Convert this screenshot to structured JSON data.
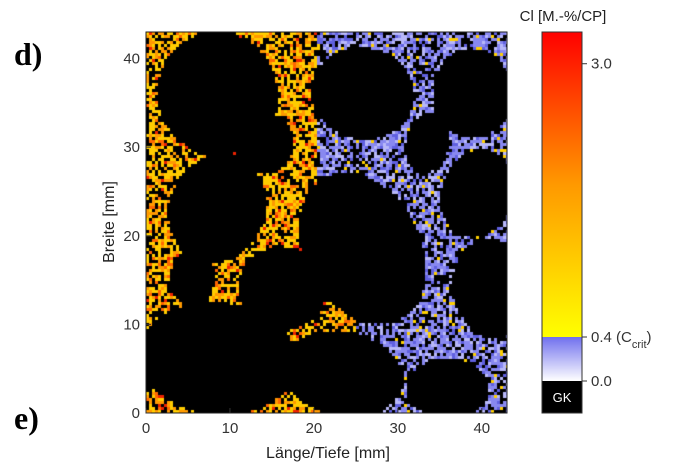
{
  "panel_labels": [
    "d)",
    "e)"
  ],
  "chart_data": {
    "type": "heatmap",
    "title": "",
    "xlabel": "Länge/Tiefe [mm]",
    "ylabel": "Breite [mm]",
    "xlim": [
      0,
      43
    ],
    "ylim": [
      0,
      43
    ],
    "xticks": [
      0,
      10,
      20,
      30,
      40
    ],
    "yticks": [
      0,
      10,
      20,
      30,
      40
    ],
    "grid": false,
    "colorbar": {
      "title": "Cl [M.-%/CP]",
      "range": [
        0,
        3.3
      ],
      "ticks": [
        {
          "value": 3.0,
          "label": "3.0"
        },
        {
          "value": 0.4,
          "label": "0.4 (C",
          "sub": "crit",
          "suffix": ")"
        },
        {
          "value": 0.0,
          "label": "0.0"
        }
      ],
      "bottom_label": "GK",
      "colors": {
        "aggregate": "#000000",
        "below_critical": "#8080f0",
        "critical": "#ffff00",
        "mid": "#ff9900",
        "max": "#ff0000"
      }
    }
  }
}
